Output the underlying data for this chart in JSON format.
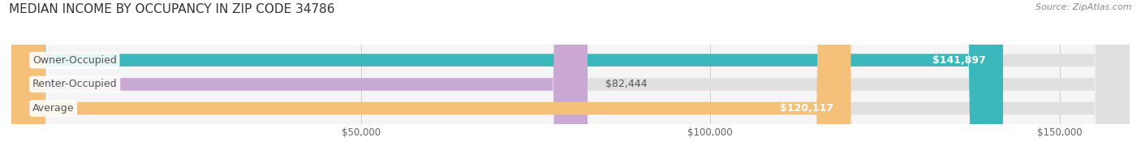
{
  "title": "MEDIAN INCOME BY OCCUPANCY IN ZIP CODE 34786",
  "source": "Source: ZipAtlas.com",
  "categories": [
    "Owner-Occupied",
    "Renter-Occupied",
    "Average"
  ],
  "values": [
    141897,
    82444,
    120117
  ],
  "bar_colors": [
    "#3ab8bc",
    "#c9a8d4",
    "#f5c07a"
  ],
  "value_labels": [
    "$141,897",
    "$82,444",
    "$120,117"
  ],
  "xlim": [
    0,
    160000
  ],
  "xticks": [
    0,
    50000,
    100000,
    150000
  ],
  "xtick_labels": [
    "",
    "$50,000",
    "$100,000",
    "$150,000"
  ],
  "title_fontsize": 11,
  "label_fontsize": 9,
  "tick_fontsize": 8.5,
  "source_fontsize": 8,
  "bg_color": "#ffffff",
  "plot_bg_color": "#f5f5f5",
  "bar_height": 0.52,
  "label_color": "#555555",
  "value_color_inside": "#ffffff",
  "value_color_outside": "#555555",
  "value_threshold": 100000
}
